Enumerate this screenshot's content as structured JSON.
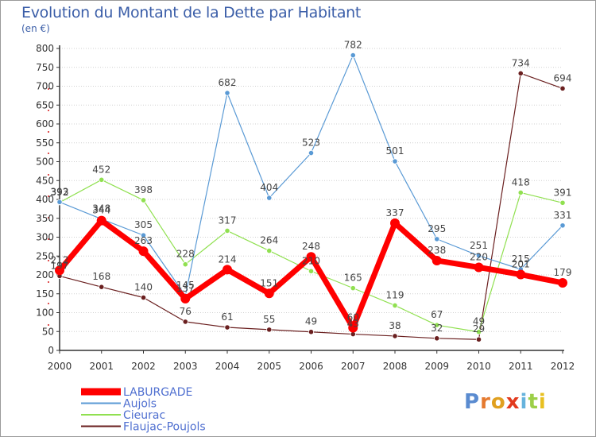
{
  "page": {
    "title": "Evolution du Montant de la Dette par Habitant",
    "subtitle": "(en €)",
    "logo": [
      "P",
      "r",
      "o",
      "x",
      "i",
      "t",
      "i"
    ]
  },
  "colors": {
    "title": "#3b5ea8",
    "axis": "#333333",
    "grid": "#d0d0d0",
    "label": "#444444",
    "legend_text": "#4f6fd0",
    "LABURGADE": "#ff0000",
    "Aujols": "#5a9ad5",
    "Cieurac": "#90e050",
    "Flaujac-Poujols": "#6a1f1f",
    "logo": [
      "#5a8bd0",
      "#e57a2f",
      "#e0a020",
      "#e23a1e",
      "#66b3dd",
      "#9ccf48",
      "#e8c020"
    ]
  },
  "chart_data": {
    "type": "line",
    "x": [
      "2000",
      "2001",
      "2002",
      "2003",
      "2004",
      "2005",
      "2006",
      "2007",
      "2008",
      "2009",
      "2010",
      "2011",
      "2012"
    ],
    "ylim": [
      0,
      800
    ],
    "yticks": [
      0,
      50,
      100,
      150,
      200,
      250,
      300,
      350,
      400,
      450,
      500,
      550,
      600,
      650,
      700,
      750,
      800
    ],
    "grid": "horizontal",
    "legend": "bottom-left",
    "series": [
      {
        "name": "LABURGADE",
        "values": [
          212,
          344,
          263,
          137,
          214,
          151,
          248,
          60,
          337,
          238,
          220,
          201,
          179
        ]
      },
      {
        "name": "Aujols",
        "values": [
          393,
          348,
          305,
          145,
          682,
          404,
          523,
          782,
          501,
          295,
          251,
          215,
          331
        ]
      },
      {
        "name": "Cieurac",
        "values": [
          392,
          452,
          398,
          228,
          317,
          264,
          210,
          165,
          119,
          67,
          49,
          418,
          391
        ]
      },
      {
        "name": "Flaujac-Poujols",
        "values": [
          197,
          168,
          140,
          76,
          61,
          55,
          49,
          43,
          38,
          32,
          29,
          734,
          694
        ]
      }
    ]
  }
}
